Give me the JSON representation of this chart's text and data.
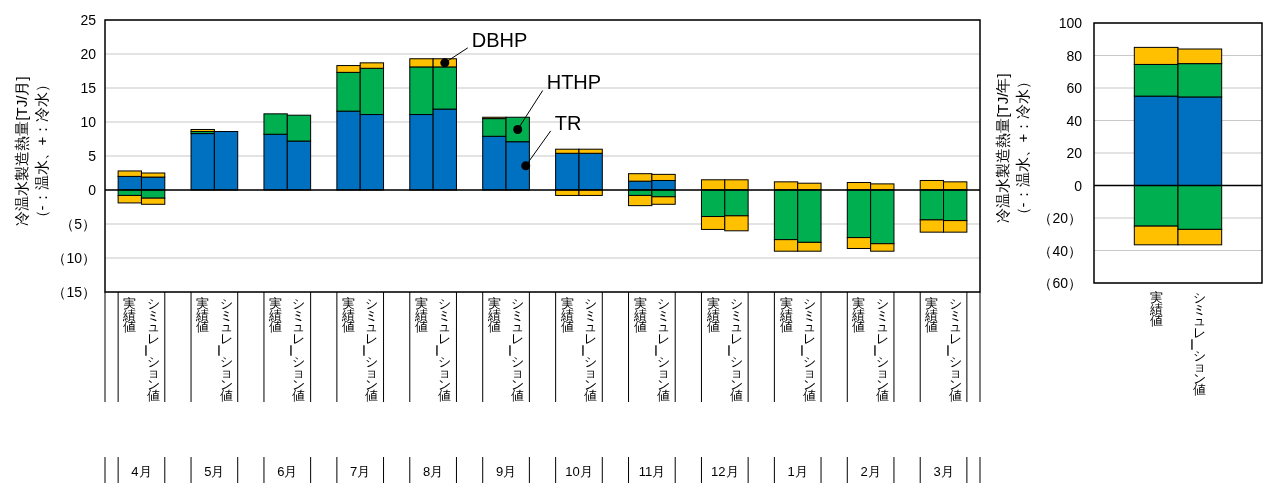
{
  "chart_data": [
    {
      "type": "bar",
      "stacked": true,
      "grid": "y",
      "ylabel": "冷温水製造熱量[TJ/月]\n（-：温水、+：冷水）",
      "categories": [
        "実績値",
        "シミュレーション値",
        "実績値",
        "シミュレーション値",
        "実績値",
        "シミュレーション値",
        "実績値",
        "シミュレーション値",
        "実績値",
        "シミュレーション値",
        "実績値",
        "シミュレーション値",
        "実績値",
        "シミュレーション値",
        "実績値",
        "シミュレーション値",
        "実績値",
        "シミュレーション値",
        "実績値",
        "シミュレーション値",
        "実績値",
        "シミュレーション値",
        "実績値",
        "シミュレーション値"
      ],
      "annotations": [
        "4月",
        "5月",
        "6月",
        "7月",
        "8月",
        "9月",
        "10月",
        "11月",
        "12月",
        "1月",
        "2月",
        "3月"
      ],
      "ylim": [
        -15,
        25
      ],
      "yticks": [
        {
          "value": -15,
          "label": "（15）"
        },
        {
          "value": -10,
          "label": "（10）"
        },
        {
          "value": -5,
          "label": "（5）"
        },
        0,
        5,
        10,
        15,
        20,
        25
      ],
      "series": [
        {
          "name": "TR",
          "color": "#0070c0",
          "values": [
            2.0,
            1.9,
            8.3,
            8.6,
            8.2,
            7.2,
            11.6,
            11.1,
            11.1,
            11.9,
            7.9,
            7.1,
            5.4,
            5.4,
            1.3,
            1.4,
            0,
            0,
            0,
            0,
            0,
            0,
            0,
            0
          ]
        },
        {
          "name": "HTHP",
          "color": "#00b050",
          "values": [
            0,
            0,
            0.3,
            0,
            3.0,
            3.8,
            5.7,
            6.8,
            7.0,
            6.2,
            2.6,
            3.6,
            0,
            0,
            0,
            0,
            0,
            0,
            0,
            0,
            0,
            0,
            0,
            0
          ]
        },
        {
          "name": "DBHP",
          "color": "#ffc000",
          "values": [
            0.8,
            0.6,
            0.3,
            0,
            null,
            null,
            1.0,
            0.8,
            1.2,
            1.2,
            0.2,
            0,
            0.6,
            0.6,
            1.1,
            0.9,
            1.5,
            1.5,
            1.2,
            1.0,
            1.1,
            0.9,
            1.4,
            1.2
          ]
        },
        {
          "color": "#00b050",
          "values": [
            -0.8,
            -1.2,
            0,
            0,
            0,
            0,
            0,
            0,
            0,
            0,
            0,
            0,
            0,
            0,
            -0.8,
            -1.0,
            -3.9,
            -3.8,
            -7.3,
            -7.7,
            -7.0,
            -7.9,
            -4.4,
            -4.5
          ]
        },
        {
          "color": "#ffc000",
          "values": [
            -1.1,
            -0.9,
            null,
            0,
            0,
            0,
            0,
            0,
            0,
            0,
            0,
            0,
            -0.8,
            -0.8,
            -1.5,
            -1.1,
            -1.9,
            -2.2,
            -1.7,
            -1.3,
            -1.6,
            -1.1,
            -1.8,
            -1.7
          ]
        }
      ]
    },
    {
      "type": "bar",
      "stacked": true,
      "grid": "y",
      "ylabel": "冷温水製造熱量[TJ/年]\n（-：温水、+：冷水）",
      "categories": [
        "実績値",
        "シミュレーション値"
      ],
      "ylim": [
        -60,
        100
      ],
      "yticks": [
        {
          "value": -60,
          "label": "（60）"
        },
        {
          "value": -40,
          "label": "（40）"
        },
        {
          "value": -20,
          "label": "（20）"
        },
        0,
        20,
        40,
        60,
        80,
        100
      ],
      "series": [
        {
          "color": "#0070c0",
          "values": [
            55,
            54.5
          ]
        },
        {
          "color": "#00b050",
          "values": [
            19.5,
            20.5
          ]
        },
        {
          "color": "#ffc000",
          "values": [
            10.5,
            9
          ]
        },
        {
          "color": "#00b050",
          "values": [
            -25,
            -27
          ]
        },
        {
          "color": "#ffc000",
          "values": [
            -11.5,
            -9.5
          ]
        }
      ]
    }
  ]
}
